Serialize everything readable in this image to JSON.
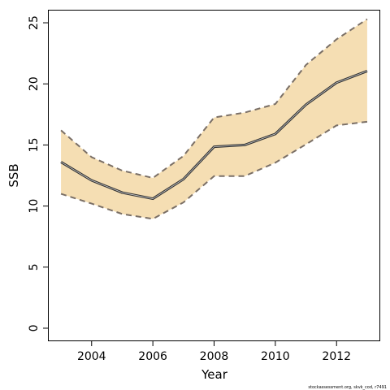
{
  "chart_data": {
    "type": "area",
    "xlabel": "Year",
    "ylabel": "SSB",
    "xlim": [
      2002.6,
      2013.4
    ],
    "ylim": [
      -1,
      26
    ],
    "x_ticks": [
      2004,
      2006,
      2008,
      2010,
      2012
    ],
    "y_ticks": [
      0,
      5,
      10,
      15,
      20,
      25
    ],
    "grid": false,
    "series": [
      {
        "x": [
          2003,
          2004,
          2005,
          2006,
          2007,
          2008,
          2009,
          2010,
          2011,
          2012,
          2013
        ],
        "values": [
          13.6,
          12.1,
          11.1,
          10.6,
          12.2,
          14.85,
          15.0,
          15.9,
          18.3,
          20.1,
          21.05
        ],
        "lower": [
          11.0,
          10.2,
          9.35,
          8.95,
          10.3,
          12.45,
          12.45,
          13.55,
          15.05,
          16.6,
          16.9
        ],
        "upper": [
          16.2,
          14.0,
          12.9,
          12.3,
          14.1,
          17.25,
          17.65,
          18.35,
          21.55,
          23.65,
          25.3
        ]
      }
    ],
    "colors": {
      "band": "#f5deb3",
      "line": "#333333",
      "dashed": "#7a6f66"
    },
    "credit": "stockassessment.org, skvk_cod, r7491"
  }
}
